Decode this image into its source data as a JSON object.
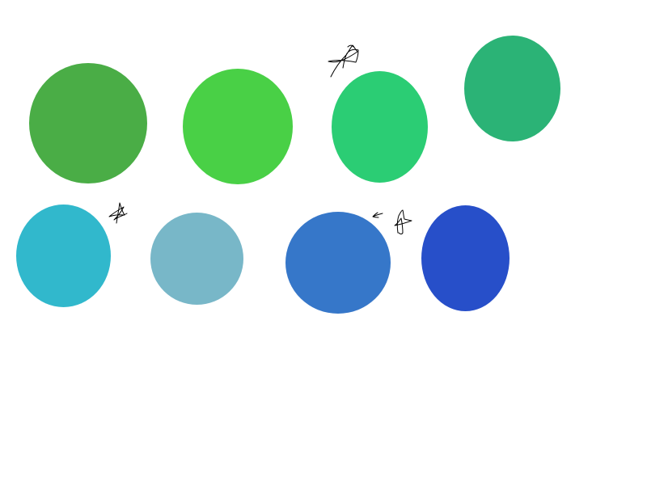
{
  "canvas": {
    "background": "#ffffff"
  },
  "circles": [
    {
      "color": "#4aad46"
    },
    {
      "color": "#49d046"
    },
    {
      "color": "#2bcd74"
    },
    {
      "color": "#2bb376"
    },
    {
      "color": "#31b8cc"
    },
    {
      "color": "#78b7c8"
    },
    {
      "color": "#3677c9"
    },
    {
      "color": "#274fc9"
    }
  ],
  "scribbles": [
    {
      "icon": "bird-sketch-icon"
    },
    {
      "icon": "star-sketch-icon"
    },
    {
      "icon": "arrow-sketch-icon"
    },
    {
      "icon": "bird-sketch-icon"
    }
  ]
}
